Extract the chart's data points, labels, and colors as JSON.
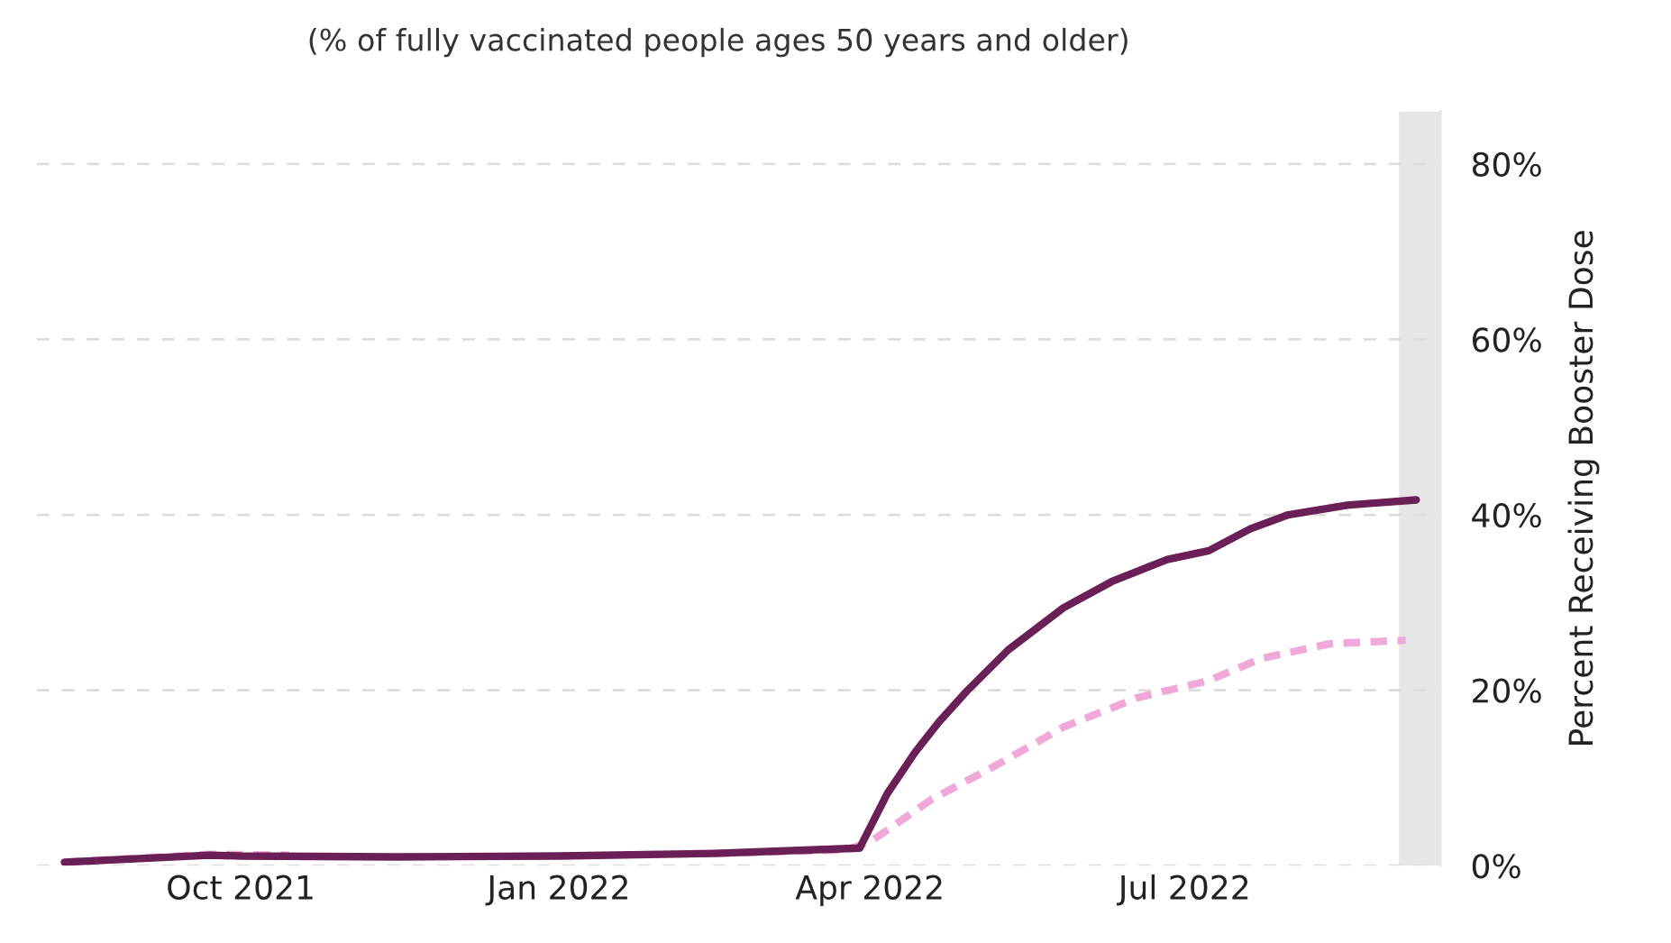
{
  "chart_data": {
    "type": "line",
    "title": "(% of fully vaccinated people ages 50 years and older)",
    "ylabel": "Percent Receiving Booster Dose",
    "xlim": [
      "2021-08-03",
      "2022-09-13"
    ],
    "ylim": [
      0,
      86
    ],
    "xticks": [
      {
        "value": "2021-10-01",
        "label": "Oct 2021"
      },
      {
        "value": "2022-01-01",
        "label": "Jan 2022"
      },
      {
        "value": "2022-04-01",
        "label": "Apr 2022"
      },
      {
        "value": "2022-07-01",
        "label": "Jul 2022"
      }
    ],
    "yticks": [
      {
        "value": 0,
        "label": "0%"
      },
      {
        "value": 20,
        "label": "20%"
      },
      {
        "value": 40,
        "label": "40%"
      },
      {
        "value": 60,
        "label": "60%"
      },
      {
        "value": 80,
        "label": "80%"
      }
    ],
    "grid": "y",
    "legend": false,
    "bands": [
      {
        "axis": "x",
        "from": "2022-09-01",
        "to": "2022-09-13",
        "color": "#e6e6e6"
      }
    ],
    "series": [
      {
        "color": "#f0a8d8",
        "line_style": "dashed",
        "x": [
          "2021-08-11",
          "2021-09-22",
          "2021-10-15",
          "2021-11-15",
          "2022-01-01",
          "2022-02-15",
          "2022-03-25",
          "2022-04-01",
          "2022-04-19",
          "2022-05-05",
          "2022-05-27",
          "2022-06-17",
          "2022-07-08",
          "2022-07-23",
          "2022-08-12",
          "2022-09-03"
        ],
        "values": [
          0.4,
          1.3,
          1.2,
          null,
          null,
          1.4,
          1.8,
          2.7,
          7.6,
          10.9,
          15.8,
          19.1,
          21.1,
          23.6,
          25.3,
          25.7
        ]
      },
      {
        "color": "#6b1f57",
        "line_style": "solid",
        "x": [
          "2021-08-11",
          "2021-09-22",
          "2021-10-01",
          "2021-11-15",
          "2022-01-01",
          "2022-02-15",
          "2022-03-29",
          "2022-04-06",
          "2022-04-14",
          "2022-04-21",
          "2022-04-29",
          "2022-05-11",
          "2022-05-27",
          "2022-06-10",
          "2022-06-26",
          "2022-07-08",
          "2022-07-20",
          "2022-07-31",
          "2022-08-17",
          "2022-09-06"
        ],
        "values": [
          0.4,
          1.2,
          1.1,
          1.0,
          1.1,
          1.4,
          2.0,
          8.2,
          12.9,
          16.4,
          19.9,
          24.6,
          29.4,
          32.4,
          34.9,
          35.9,
          38.4,
          40.0,
          41.1,
          41.7
        ]
      }
    ]
  }
}
